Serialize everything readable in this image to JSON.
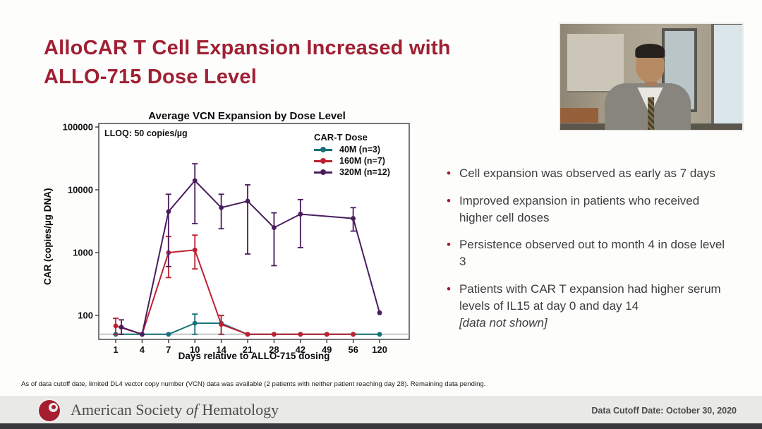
{
  "slide": {
    "title_line1": "AlloCAR T Cell Expansion Increased with",
    "title_line2": "ALLO-715 Dose Level",
    "footnote": "As of data cutoff date, limited DL4 vector copy number (VCN) data was available (2 patients with neither patient reaching day 28). Remaining data pending."
  },
  "bullets": [
    {
      "text": "Cell expansion was observed as early as 7 days"
    },
    {
      "text": "Improved expansion in patients who received higher cell doses"
    },
    {
      "text": "Persistence observed out to month 4 in dose level 3"
    },
    {
      "text": "Patients with CAR T expansion had higher serum levels of IL15 at day 0 and day 14",
      "note": "[data not shown]"
    }
  ],
  "chart_data": {
    "type": "line",
    "title": "Average VCN Expansion by Dose Level",
    "xlabel": "Days relative to ALLO-715 dosing",
    "ylabel": "CAR (copies/µg DNA)",
    "y_scale": "log",
    "ylim": [
      50,
      100000
    ],
    "y_ticks": [
      100,
      1000,
      10000,
      100000
    ],
    "lloq_label": "LLOQ: 50 copies/µg",
    "lloq_value": 50,
    "legend_title": "CAR-T Dose",
    "legend_position": "top-right-inside",
    "grid": false,
    "categories": [
      1,
      4,
      7,
      10,
      14,
      21,
      28,
      42,
      49,
      56,
      120
    ],
    "series": [
      {
        "name": "40M (n=3)",
        "color": "#16717C",
        "values": [
          50,
          50,
          50,
          75,
          75,
          50,
          50,
          50,
          50,
          50,
          50
        ],
        "err_lo": [
          null,
          null,
          null,
          50,
          50,
          null,
          null,
          null,
          null,
          null,
          null
        ],
        "err_hi": [
          null,
          null,
          null,
          105,
          100,
          null,
          null,
          null,
          null,
          null,
          null
        ]
      },
      {
        "name": "160M (n=7)",
        "color": "#BE2031",
        "values": [
          68,
          50,
          1000,
          1100,
          72,
          50,
          50,
          50,
          50,
          50,
          null
        ],
        "err_lo": [
          50,
          null,
          400,
          550,
          50,
          null,
          null,
          null,
          null,
          null,
          null
        ],
        "err_hi": [
          90,
          null,
          1800,
          1900,
          100,
          null,
          null,
          null,
          null,
          null,
          null
        ]
      },
      {
        "name": "320M (n=12)",
        "color": "#4A1D5E",
        "values": [
          65,
          50,
          4500,
          14000,
          5200,
          6600,
          2500,
          4100,
          null,
          3500,
          110
        ],
        "err_lo": [
          50,
          null,
          600,
          2900,
          2400,
          950,
          620,
          1200,
          null,
          2200,
          null
        ],
        "err_hi": [
          85,
          null,
          8500,
          26000,
          8500,
          12000,
          4300,
          7000,
          null,
          5200,
          null
        ]
      }
    ]
  },
  "footer_bar": {
    "logo": "ash-logo",
    "org_pre": "American Society ",
    "org_of": "of",
    "org_post": " Hematology",
    "data_cutoff": "Data Cutoff Date: October 30, 2020"
  },
  "colors": {
    "title": "#A02033",
    "bullet_marker": "#9E1B32",
    "series_teal": "#16717C",
    "series_red": "#BE2031",
    "series_purple": "#4A1D5E"
  }
}
